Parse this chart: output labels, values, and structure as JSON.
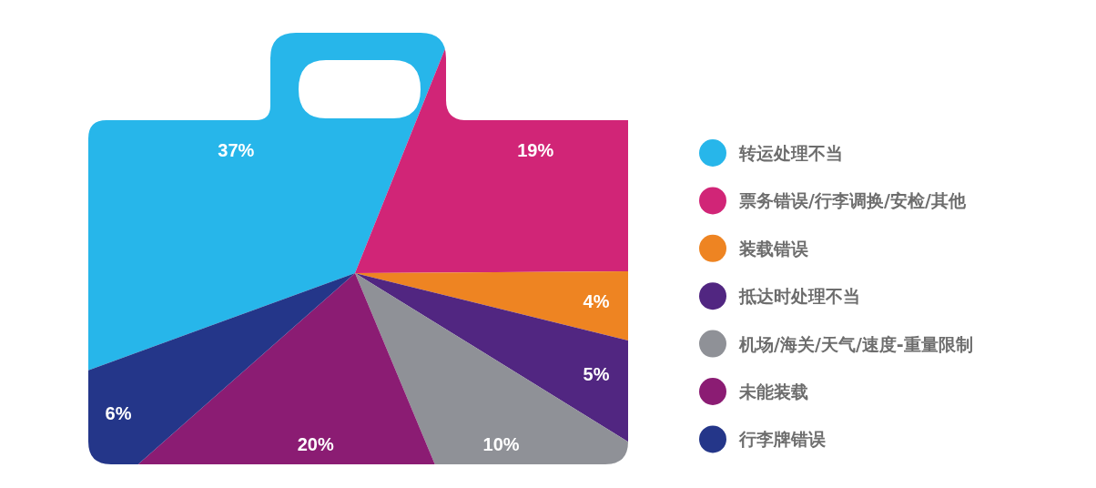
{
  "chart_data": {
    "type": "pie",
    "categories": [
      "转运处理不当",
      "票务错误/行李调换/安检/其他",
      "装载错误",
      "抵达时处理不当",
      "机场/海关/天气/速度-重量限制",
      "未能装载",
      "行李牌错误"
    ],
    "values": [
      37,
      19,
      4,
      5,
      10,
      20,
      6
    ],
    "value_labels": [
      "37%",
      "19%",
      "4%",
      "5%",
      "10%",
      "20%",
      "6%"
    ],
    "colors": [
      "#27b6ea",
      "#d12577",
      "#ee8422",
      "#512681",
      "#8f9197",
      "#8b1c73",
      "#243689"
    ],
    "legend": "right"
  }
}
